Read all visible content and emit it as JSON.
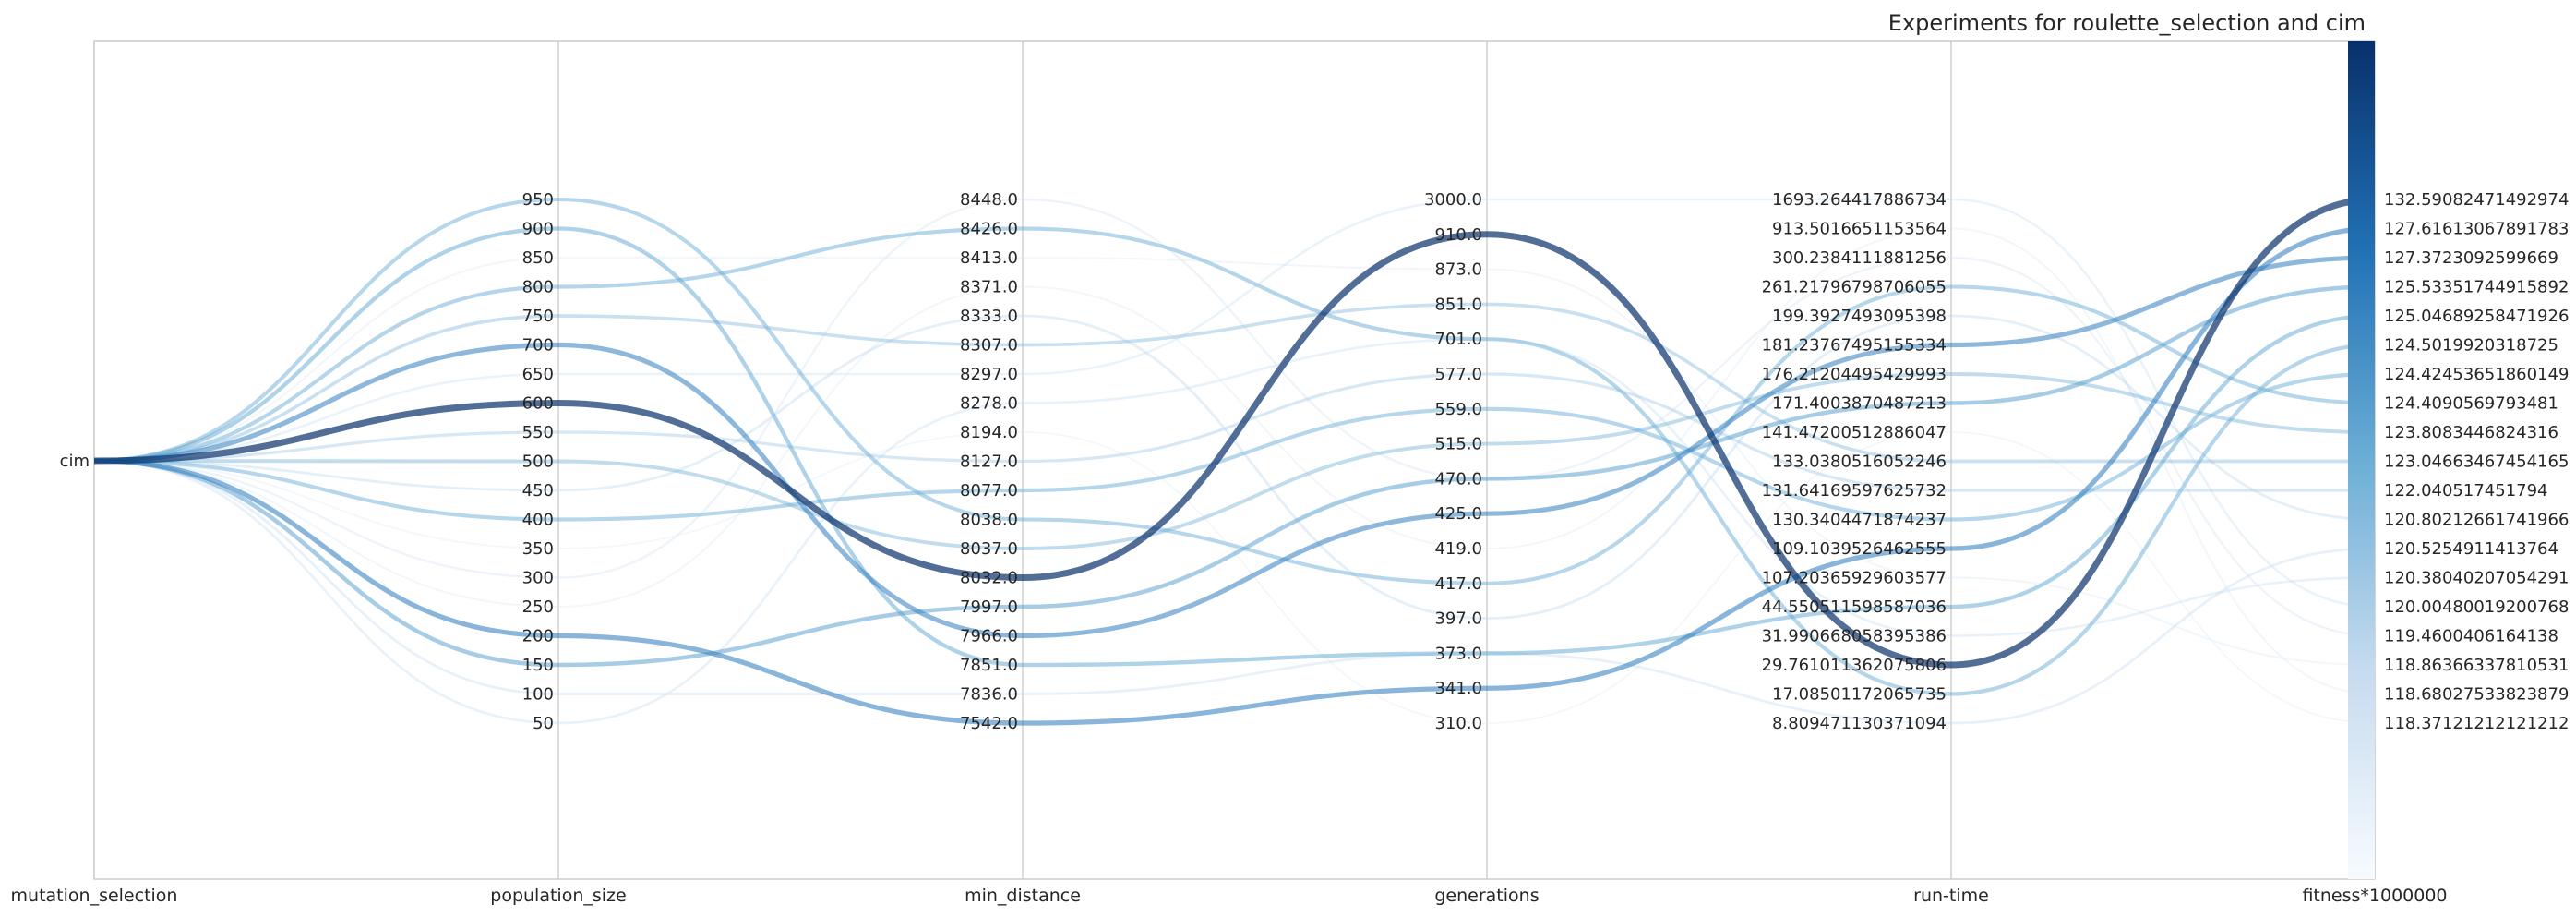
{
  "chart_data": {
    "type": "parallel_coordinates",
    "title": "Experiments for roulette_selection and cim",
    "axes": [
      "mutation_selection",
      "population_size",
      "min_distance",
      "generations",
      "run-time",
      "fitness*1000000"
    ],
    "tick_labels": {
      "mutation_selection": [
        "cim"
      ],
      "population_size": [
        "950",
        "900",
        "850",
        "800",
        "750",
        "700",
        "650",
        "600",
        "550",
        "500",
        "450",
        "400",
        "350",
        "300",
        "250",
        "200",
        "150",
        "100",
        "50"
      ],
      "min_distance": [
        "8448.0",
        "8426.0",
        "8413.0",
        "8371.0",
        "8333.0",
        "8307.0",
        "8297.0",
        "8278.0",
        "8194.0",
        "8127.0",
        "8077.0",
        "8038.0",
        "8037.0",
        "8032.0",
        "7997.0",
        "7966.0",
        "7851.0",
        "7836.0",
        "7542.0"
      ],
      "generations": [
        "3000.0",
        "910.0",
        "873.0",
        "851.0",
        "701.0",
        "577.0",
        "559.0",
        "515.0",
        "470.0",
        "425.0",
        "419.0",
        "417.0",
        "397.0",
        "373.0",
        "341.0",
        "310.0"
      ],
      "run-time": [
        "1693.264417886734",
        "913.5016651153564",
        "300.2384111881256",
        "261.21796798706055",
        "199.3927493095398",
        "181.23767495155334",
        "176.21204495429993",
        "171.4003870487213",
        "141.47200512886047",
        "133.0380516052246",
        "131.64169597625732",
        "130.3404471874237",
        "109.1039526462555",
        "107.20365929603577",
        "44.550511598587036",
        "31.990668058395386",
        "29.761011362075806",
        "17.08501172065735",
        "8.809471130371094"
      ],
      "fitness*1000000": [
        "132.59082471492974",
        "127.61613067891783",
        "127.3723092599669",
        "125.53351744915892",
        "125.04689258471926",
        "124.5019920318725",
        "124.42453651860149",
        "124.4090569793481",
        "123.8083446824316",
        "123.04663467454165",
        "122.040517451794",
        "120.80212661741966",
        "120.5254911413764",
        "120.38040207054291",
        "120.00480019200768",
        "119.4600406164138",
        "118.86366337810531",
        "118.68027533823879",
        "118.37121212121212"
      ]
    },
    "colormap": "Blues",
    "color_by": "fitness*1000000",
    "colorscale_colors": [
      "#f7fbff",
      "#c6dbef",
      "#6baed6",
      "#2171b5",
      "#08306b"
    ],
    "grid": true,
    "lines": [
      {
        "population_size": "950",
        "min_distance": "8038.0",
        "generations": "417.0",
        "run-time": "261.21796798706055",
        "fitness*1000000": "124.4090569793481"
      },
      {
        "population_size": "900",
        "min_distance": "7851.0",
        "generations": "373.0",
        "run-time": "44.550511598587036",
        "fitness*1000000": "125.04689258471926"
      },
      {
        "population_size": "850",
        "min_distance": "8413.0",
        "generations": "873.0",
        "run-time": "107.20365929603577",
        "fitness*1000000": "118.86366337810531"
      },
      {
        "population_size": "800",
        "min_distance": "8426.0",
        "generations": "701.0",
        "run-time": "17.08501172065735",
        "fitness*1000000": "124.5019920318725"
      },
      {
        "population_size": "750",
        "min_distance": "8307.0",
        "generations": "851.0",
        "run-time": "133.0380516052246",
        "fitness*1000000": "123.04663467454165"
      },
      {
        "population_size": "700",
        "min_distance": "7966.0",
        "generations": "425.0",
        "run-time": "181.23767495155334",
        "fitness*1000000": "127.3723092599669"
      },
      {
        "population_size": "650",
        "min_distance": "8297.0",
        "generations": "3000.0",
        "run-time": "1693.264417886734",
        "fitness*1000000": "120.00480019200768"
      },
      {
        "population_size": "600",
        "min_distance": "8032.0",
        "generations": "910.0",
        "run-time": "29.761011362075806",
        "fitness*1000000": "132.59082471492974"
      },
      {
        "population_size": "550",
        "min_distance": "8127.0",
        "generations": "577.0",
        "run-time": "131.64169597625732",
        "fitness*1000000": "122.040517451794"
      },
      {
        "population_size": "500",
        "min_distance": "8037.0",
        "generations": "515.0",
        "run-time": "176.21204495429993",
        "fitness*1000000": "123.8083446824316"
      },
      {
        "population_size": "450",
        "min_distance": "8333.0",
        "generations": "397.0",
        "run-time": "199.3927493095398",
        "fitness*1000000": "120.80212661741966"
      },
      {
        "population_size": "400",
        "min_distance": "8077.0",
        "generations": "559.0",
        "run-time": "130.3404471874237",
        "fitness*1000000": "124.42453651860149"
      },
      {
        "population_size": "350",
        "min_distance": "8194.0",
        "generations": "310.0",
        "run-time": "141.47200512886047",
        "fitness*1000000": "118.37121212121212"
      },
      {
        "population_size": "300",
        "min_distance": "8448.0",
        "generations": "470.0",
        "run-time": "300.2384111881256",
        "fitness*1000000": "119.4600406164138"
      },
      {
        "population_size": "250",
        "min_distance": "8371.0",
        "generations": "419.0",
        "run-time": "913.5016651153564",
        "fitness*1000000": "118.68027533823879"
      },
      {
        "population_size": "200",
        "min_distance": "7542.0",
        "generations": "341.0",
        "run-time": "109.1039526462555",
        "fitness*1000000": "127.61613067891783"
      },
      {
        "population_size": "150",
        "min_distance": "7997.0",
        "generations": "470.0",
        "run-time": "171.4003870487213",
        "fitness*1000000": "125.53351744915892"
      },
      {
        "population_size": "100",
        "min_distance": "7836.0",
        "generations": "373.0",
        "run-time": "8.809471130371094",
        "fitness*1000000": "120.5254911413764"
      },
      {
        "population_size": "50",
        "min_distance": "8278.0",
        "generations": "701.0",
        "run-time": "31.990668058395386",
        "fitness*1000000": "120.38040207054291"
      }
    ]
  }
}
